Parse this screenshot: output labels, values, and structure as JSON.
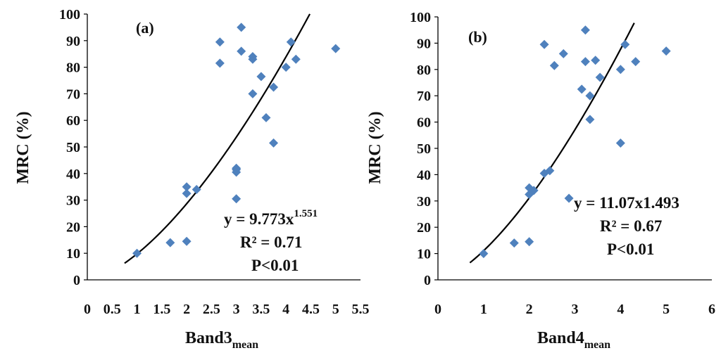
{
  "chart_data": [
    {
      "type": "scatter",
      "panel_label": "(a)",
      "xlabel": "Band3",
      "xlabel_sub": "mean",
      "ylabel": "MRC (%)",
      "xlim": [
        0,
        5.5
      ],
      "ylim": [
        0,
        100
      ],
      "x_ticks": [
        "0",
        "0.5",
        "1",
        "1.5",
        "2",
        "2.5",
        "3",
        "3.5",
        "4",
        "4.5",
        "5",
        "5.5"
      ],
      "y_ticks": [
        "0",
        "10",
        "20",
        "30",
        "40",
        "50",
        "60",
        "70",
        "80",
        "90",
        "100"
      ],
      "x": [
        1.0,
        1.67,
        2.0,
        2.0,
        2.0,
        2.2,
        2.67,
        2.67,
        3.0,
        3.0,
        3.0,
        3.0,
        3.1,
        3.1,
        3.33,
        3.33,
        3.33,
        3.5,
        3.6,
        3.75,
        3.75,
        4.0,
        4.1,
        4.2,
        5.0
      ],
      "y": [
        10,
        14,
        14.5,
        32.5,
        35,
        34,
        81.5,
        89.5,
        30.5,
        40.5,
        41.5,
        42,
        86,
        95,
        70,
        83,
        84,
        76.5,
        61,
        51.5,
        72.5,
        80,
        89.5,
        83,
        87
      ],
      "fit": {
        "kind": "power",
        "a": 9.773,
        "b": 1.551,
        "x_range": [
          0.75,
          4.48
        ]
      },
      "annotations": [
        "y = 9.773x",
        "1.551",
        "R² = 0.71",
        "P<0.01"
      ]
    },
    {
      "type": "scatter",
      "panel_label": "(b)",
      "xlabel": "Band4",
      "xlabel_sub": "mean",
      "ylabel": "MRC (%)",
      "xlim": [
        0,
        6
      ],
      "ylim": [
        0,
        100
      ],
      "x_ticks": [
        "0",
        "1",
        "2",
        "3",
        "4",
        "5",
        "6"
      ],
      "y_ticks": [
        "0",
        "10",
        "20",
        "30",
        "40",
        "50",
        "60",
        "70",
        "80",
        "90",
        "100"
      ],
      "x": [
        1.0,
        1.67,
        2.0,
        2.0,
        2.0,
        2.1,
        2.33,
        2.33,
        2.45,
        2.55,
        2.75,
        2.87,
        3.15,
        3.23,
        3.23,
        3.33,
        3.33,
        3.45,
        3.55,
        4.0,
        4.0,
        4.1,
        4.33,
        5.0
      ],
      "y": [
        10,
        14,
        14.5,
        32.5,
        35,
        34,
        89.5,
        40.5,
        41.5,
        81.5,
        86,
        31,
        72.5,
        95,
        83,
        61,
        70,
        83.5,
        77,
        80,
        52,
        89.5,
        83,
        87
      ],
      "fit": {
        "kind": "power",
        "a": 11.07,
        "b": 1.493,
        "x_range": [
          0.7,
          4.3
        ]
      },
      "annotations": [
        "y = 11.07x1.493",
        "R² = 0.67",
        "P<0.01"
      ]
    }
  ],
  "colors": {
    "marker": "#4f81bd",
    "fit_line": "#000000",
    "axis": "#000000"
  }
}
